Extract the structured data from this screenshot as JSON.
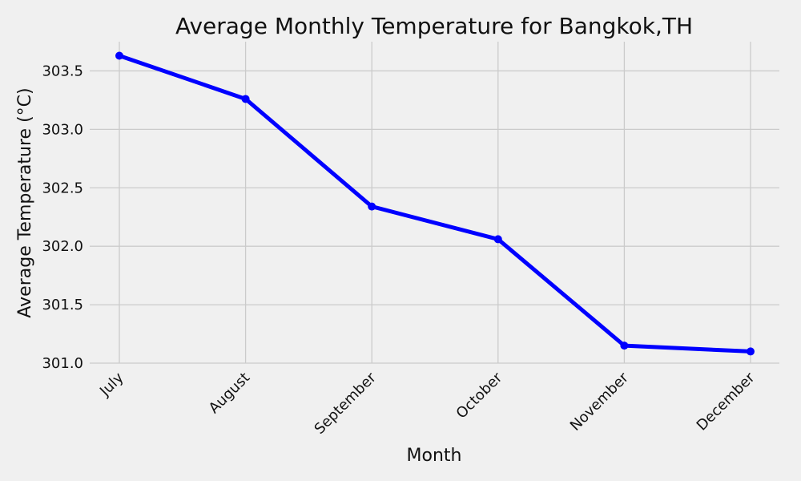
{
  "chart_data": {
    "type": "line",
    "title": "Average Monthly Temperature for Bangkok,TH",
    "xlabel": "Month",
    "ylabel": "Average Temperature (°C)",
    "categories": [
      "July",
      "August",
      "September",
      "October",
      "November",
      "December"
    ],
    "series": [
      {
        "values": [
          303.63,
          303.26,
          302.34,
          302.06,
          301.15,
          301.1
        ],
        "color": "#0000ff",
        "marker": "circle"
      }
    ],
    "ylim": [
      301.0,
      303.75
    ],
    "yticks": [
      301.0,
      301.5,
      302.0,
      302.5,
      303.0,
      303.5
    ],
    "ytick_labels": [
      "301.0",
      "301.5",
      "302.0",
      "302.5",
      "303.0",
      "303.5"
    ],
    "grid": true,
    "background": "#f0f0f0",
    "grid_color": "#cbcbcb"
  }
}
